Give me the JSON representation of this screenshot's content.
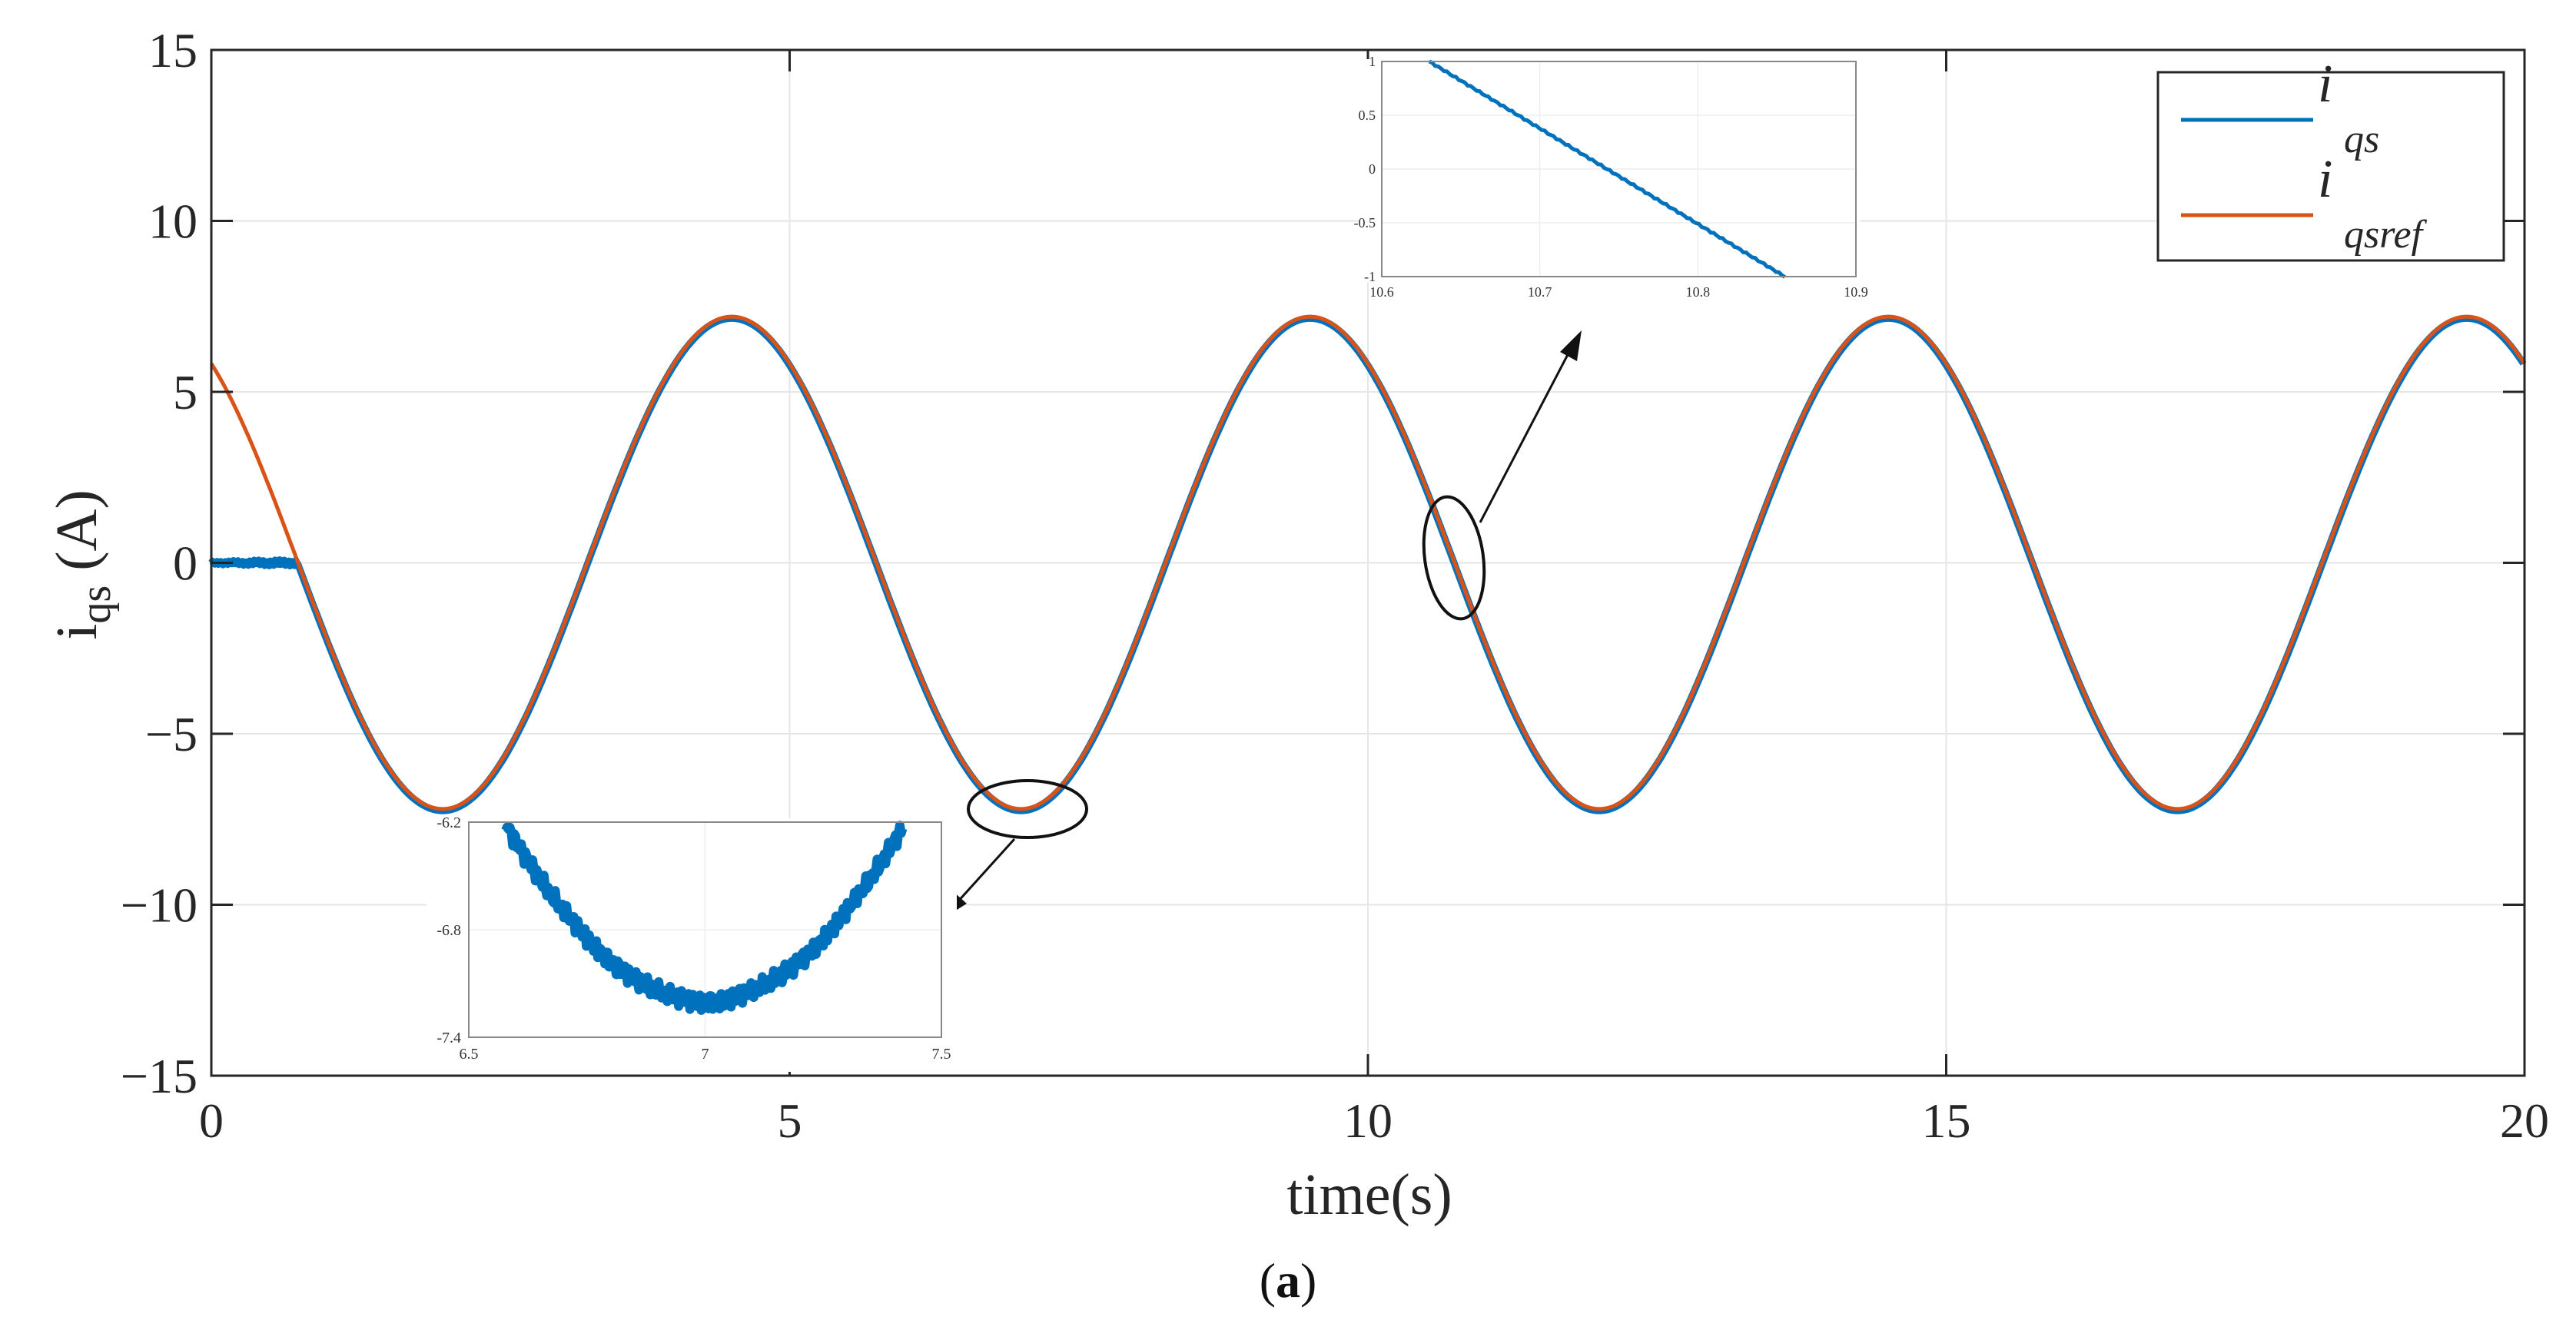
{
  "caption": {
    "open": "(",
    "letter": "a",
    "close": ")"
  },
  "chart_data": [
    {
      "type": "line",
      "title": "",
      "xlabel": "time(s)",
      "ylabel": {
        "base": "i",
        "sub": "qs",
        "unit": " (A)"
      },
      "xlim": [
        0,
        20
      ],
      "ylim": [
        -15,
        15
      ],
      "xticks": [
        0,
        5,
        10,
        15,
        20
      ],
      "yticks": [
        15,
        10,
        5,
        0,
        -5,
        -10,
        -15
      ],
      "xtick_labels": [
        "0",
        "5",
        "10",
        "15",
        "20"
      ],
      "ytick_labels": [
        "15",
        "10",
        "5",
        "0",
        "−5",
        "−10",
        "−15"
      ],
      "grid": true,
      "legend_position": "top-right",
      "model": {
        "amplitude": 7.2,
        "period": 5.0,
        "phase_time": 4.5
      },
      "series": [
        {
          "name": "qsref",
          "legend_base": "i",
          "legend_sub": "qsref",
          "color": "#d95319",
          "points": [
            [
              0,
              5.82
            ],
            [
              0.5,
              3.73
            ],
            [
              1.0,
              1.26
            ],
            [
              1.5,
              -1.26
            ],
            [
              2.0,
              -7.2
            ],
            [
              2.5,
              -5.82
            ],
            [
              3.0,
              -2.22
            ],
            [
              3.5,
              2.22
            ],
            [
              4.0,
              5.82
            ],
            [
              4.5,
              7.2
            ],
            [
              5.0,
              5.82
            ],
            [
              5.5,
              2.22
            ],
            [
              6.0,
              -2.22
            ],
            [
              6.5,
              -5.82
            ],
            [
              7.0,
              -7.2
            ],
            [
              7.5,
              -5.82
            ],
            [
              8.0,
              -2.22
            ],
            [
              8.5,
              2.22
            ],
            [
              9.0,
              5.82
            ],
            [
              9.5,
              7.2
            ],
            [
              10.0,
              5.82
            ],
            [
              10.5,
              2.22
            ],
            [
              11.0,
              -2.22
            ],
            [
              11.5,
              -5.82
            ],
            [
              12.0,
              -7.2
            ],
            [
              12.5,
              -5.82
            ],
            [
              13.0,
              -2.22
            ],
            [
              13.5,
              2.22
            ],
            [
              14.0,
              5.82
            ],
            [
              14.5,
              7.2
            ],
            [
              15.0,
              5.82
            ],
            [
              15.5,
              2.22
            ],
            [
              16.0,
              -2.22
            ],
            [
              16.5,
              -5.82
            ],
            [
              17.0,
              -7.2
            ],
            [
              17.5,
              -5.82
            ],
            [
              18.0,
              -2.22
            ],
            [
              18.5,
              2.22
            ],
            [
              19.0,
              5.82
            ],
            [
              19.5,
              7.2
            ],
            [
              20.0,
              5.82
            ]
          ]
        },
        {
          "name": "qs",
          "legend_base": "i",
          "legend_sub": "qs",
          "color": "#0072bd",
          "initial_segment": {
            "x_start": 0,
            "x_end": 0.75,
            "value": 0
          },
          "follows": "qsref from x = 0.75"
        }
      ]
    },
    {
      "type": "line",
      "inset": "zoom-crossing",
      "xlim": [
        10.6,
        10.9
      ],
      "ylim": [
        -1,
        1
      ],
      "xticks": [
        10.6,
        10.7,
        10.8,
        10.9
      ],
      "yticks": [
        1,
        0.5,
        0,
        -0.5,
        -1
      ],
      "xtick_labels": [
        "10.6",
        "10.7",
        "10.8",
        "10.9"
      ],
      "ytick_labels": [
        "1",
        "0.5",
        "0",
        "-0.5",
        "-1"
      ],
      "series": [
        {
          "name": "qs",
          "color": "#0072bd",
          "points": [
            [
              10.63,
              1.0
            ],
            [
              10.855,
              -1.0
            ]
          ]
        }
      ]
    },
    {
      "type": "line",
      "inset": "zoom-trough",
      "xlim": [
        6.5,
        7.5
      ],
      "ylim": [
        -7.4,
        -6.2
      ],
      "xticks": [
        6.5,
        7,
        7.5
      ],
      "yticks": [
        -6.2,
        -6.8,
        -7.4
      ],
      "xtick_labels": [
        "6.5",
        "7",
        "7.5"
      ],
      "ytick_labels": [
        "-6.2",
        "-6.8",
        "-7.4"
      ],
      "series": [
        {
          "name": "qs",
          "color": "#0072bd",
          "trough": {
            "x": 7.0,
            "y": -7.2
          }
        }
      ]
    }
  ]
}
